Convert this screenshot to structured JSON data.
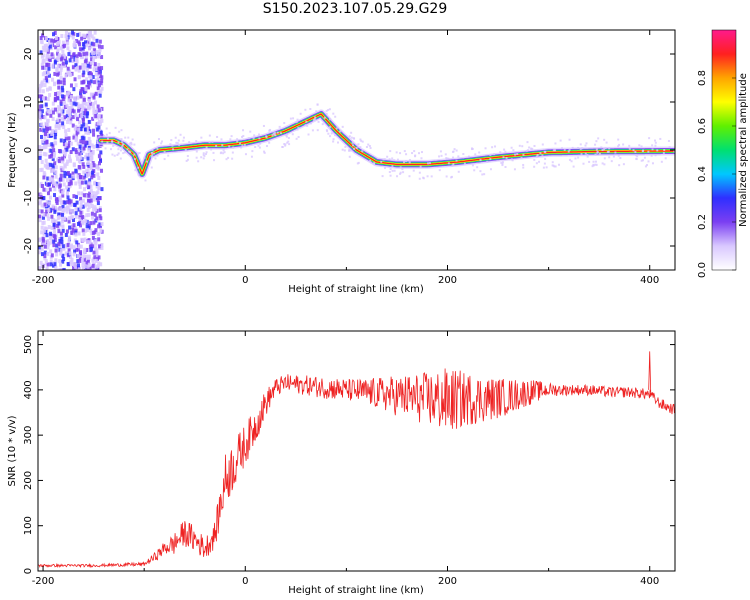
{
  "title": "S150.2023.107.05.29.G29",
  "colors": {
    "snr_line": "#ee2222",
    "axis": "#000000",
    "colormap": [
      "#ffffff",
      "#d9c8ff",
      "#7b3ff2",
      "#2f2fff",
      "#00c8ff",
      "#00e070",
      "#60f000",
      "#ffff00",
      "#ffa500",
      "#ff2020",
      "#ff1a8c"
    ]
  },
  "chart_data": [
    {
      "type": "heatmap",
      "title": "",
      "xlabel": "Height of straight line (km)",
      "ylabel": "Frequency (Hz)",
      "xlim": [
        -205,
        425
      ],
      "ylim": [
        -25,
        25
      ],
      "xticks": [
        -200,
        0,
        200,
        400
      ],
      "yticks": [
        -20,
        -10,
        0,
        10,
        20
      ],
      "colorbar": {
        "label": "Normalized spectral amplitude",
        "range": [
          0,
          1
        ],
        "ticks": [
          0.0,
          0.2,
          0.4,
          0.6,
          0.8
        ]
      },
      "noise_band_x": [
        -205,
        -143
      ],
      "ridge": {
        "x": [
          -143,
          -130,
          -120,
          -110,
          -102,
          -95,
          -85,
          -60,
          -40,
          -20,
          0,
          20,
          40,
          60,
          75,
          90,
          110,
          130,
          150,
          180,
          210,
          250,
          300,
          350,
          425
        ],
        "y": [
          2,
          2,
          1,
          -1,
          -5,
          -1,
          0,
          0.5,
          1,
          1,
          1.5,
          2.5,
          4,
          6,
          7.5,
          4,
          0,
          -2.5,
          -3,
          -3,
          -2.5,
          -1.5,
          -0.5,
          -0.3,
          -0.2
        ]
      }
    },
    {
      "type": "line",
      "title": "",
      "xlabel": "Height of straight line (km)",
      "ylabel": "SNR (10 * v/v)",
      "xlim": [
        -205,
        425
      ],
      "ylim": [
        0,
        530
      ],
      "xticks": [
        -200,
        0,
        200,
        400
      ],
      "yticks": [
        0,
        100,
        200,
        300,
        400,
        500
      ],
      "series": [
        {
          "x": [
            -205,
            -150,
            -100,
            -90,
            -80,
            -70,
            -60,
            -50,
            -40,
            -30,
            -20,
            -10,
            0,
            10,
            20,
            30,
            40,
            60,
            80,
            100,
            120,
            140,
            160,
            180,
            200,
            220,
            240,
            260,
            280,
            300,
            320,
            340,
            360,
            380,
            400,
            410,
            420,
            425
          ],
          "values": [
            12,
            12,
            15,
            30,
            50,
            60,
            85,
            70,
            50,
            80,
            200,
            240,
            280,
            320,
            370,
            405,
            415,
            410,
            405,
            400,
            395,
            390,
            385,
            380,
            375,
            380,
            380,
            385,
            395,
            400,
            400,
            400,
            395,
            395,
            390,
            370,
            360,
            355
          ],
          "noise": [
            3,
            3,
            4,
            10,
            15,
            25,
            30,
            30,
            25,
            30,
            60,
            55,
            45,
            40,
            30,
            20,
            20,
            22,
            25,
            25,
            30,
            40,
            50,
            60,
            75,
            60,
            50,
            40,
            30,
            15,
            12,
            12,
            12,
            12,
            12,
            12,
            12,
            12
          ]
        }
      ],
      "annotations": [
        {
          "x": 400,
          "y": 485
        }
      ]
    }
  ]
}
